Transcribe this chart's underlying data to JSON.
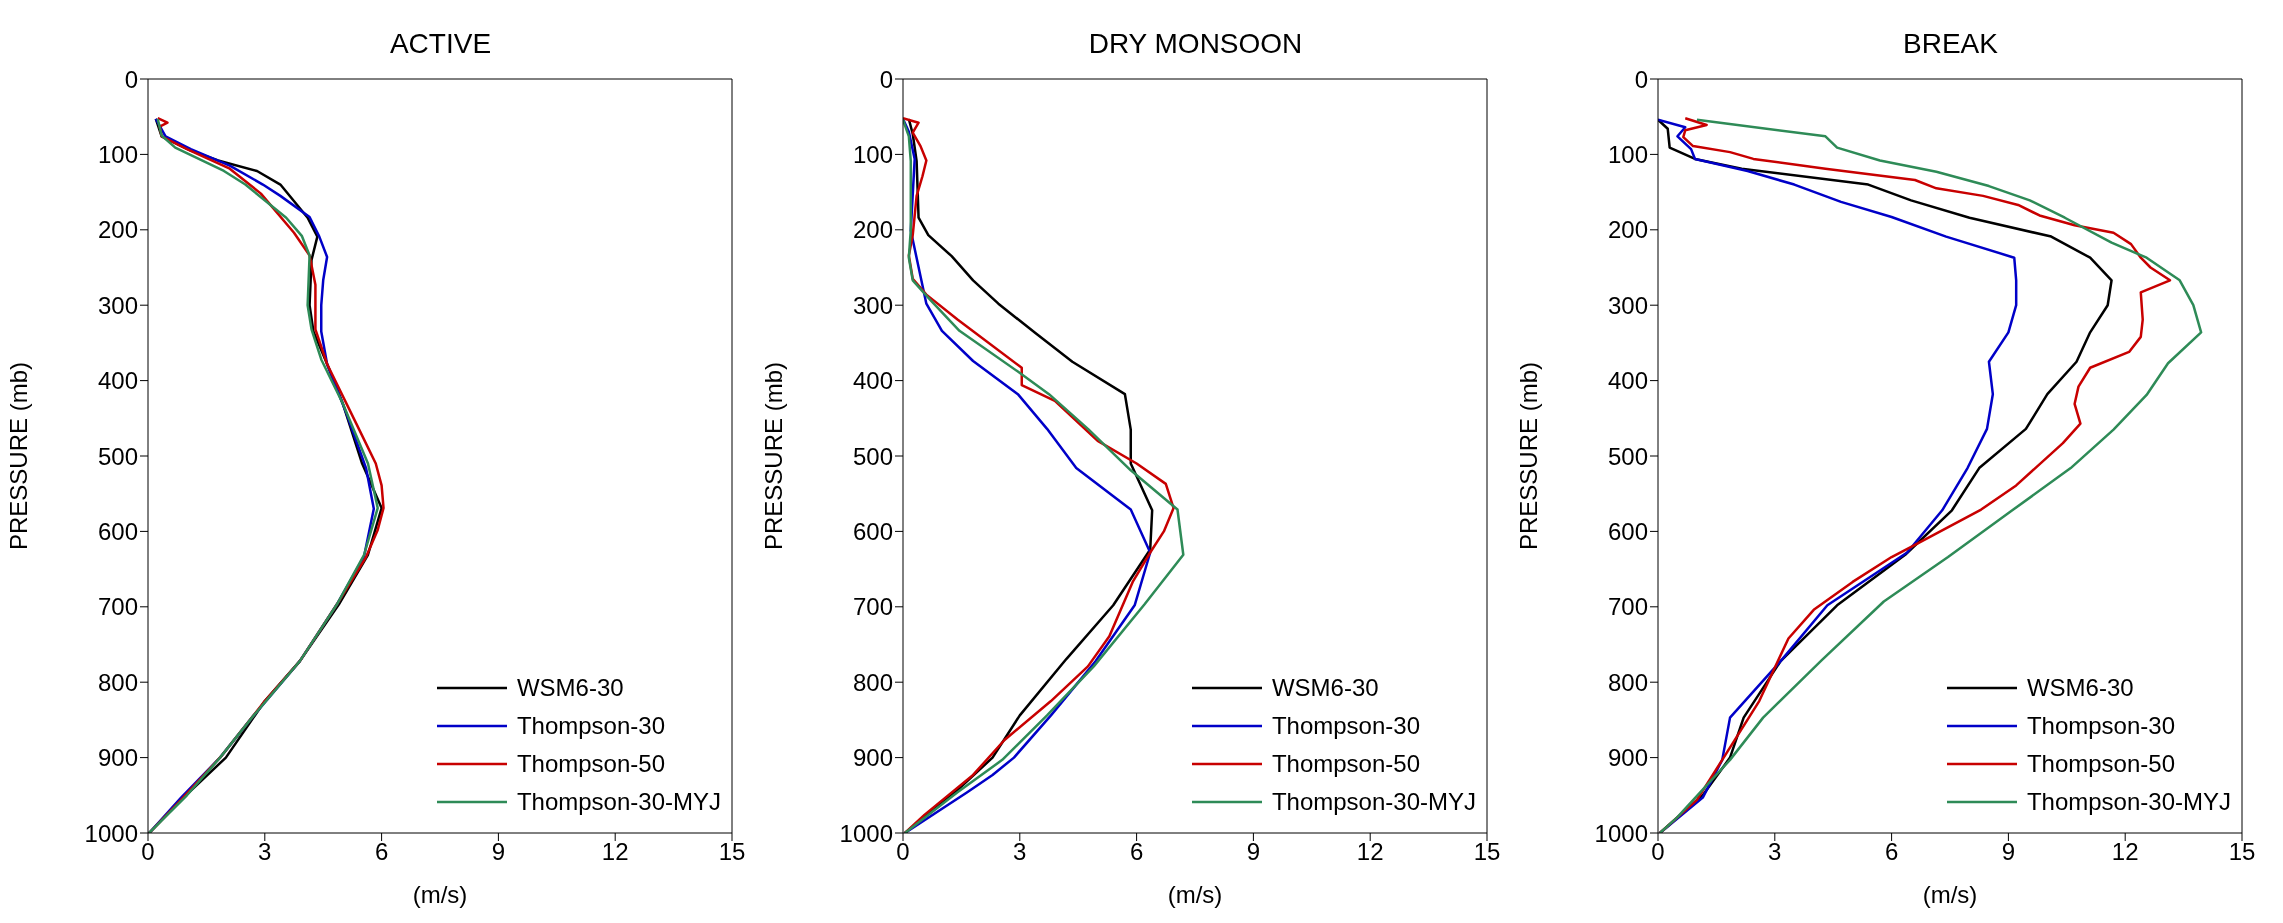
{
  "chart_data": [
    {
      "type": "line",
      "title": "ACTIVE",
      "xlabel": "(m/s)",
      "ylabel": "PRESSURE (mb)",
      "xlim": [
        0,
        15
      ],
      "xticks": [
        0,
        3,
        6,
        9,
        12,
        15
      ],
      "ylim": [
        1000,
        0
      ],
      "yticks": [
        0,
        100,
        200,
        300,
        400,
        500,
        600,
        700,
        800,
        900,
        1000
      ],
      "legend": "bottom right",
      "series": [
        {
          "name": "WSM6-30",
          "color": "#000000",
          "x": [
            0.2,
            0.35,
            1.1,
            1.8,
            2.8,
            3.4,
            4.1,
            4.35,
            4.2,
            4.15,
            4.25,
            4.6,
            5.0,
            5.5,
            6.0,
            5.65,
            4.9,
            3.9,
            3.0,
            2.0,
            0.85,
            0.03
          ],
          "values": [
            53,
            76,
            95,
            108,
            122,
            140,
            184,
            209,
            240,
            300,
            335,
            378,
            430,
            510,
            569,
            631,
            697,
            772,
            825,
            900,
            956,
            1000
          ]
        },
        {
          "name": "Thompson-30",
          "color": "#0000c8",
          "x": [
            0.2,
            0.45,
            1.1,
            2.1,
            2.95,
            3.4,
            4.15,
            4.4,
            4.6,
            4.5,
            4.45,
            4.45,
            4.6,
            5.1,
            5.6,
            5.8,
            5.55,
            4.85,
            3.9,
            2.7,
            1.85,
            0.85,
            0.03
          ],
          "values": [
            53,
            76,
            93,
            115,
            140,
            155,
            183,
            209,
            236,
            267,
            300,
            335,
            378,
            444,
            516,
            570,
            633,
            697,
            772,
            845,
            900,
            953,
            1000
          ]
        },
        {
          "name": "Thompson-50",
          "color": "#c80000",
          "x": [
            0.25,
            0.5,
            0.3,
            0.35,
            1.0,
            2.1,
            2.9,
            3.75,
            4.15,
            4.3,
            4.3,
            4.3,
            4.6,
            5.35,
            5.85,
            6.0,
            6.05,
            5.9,
            5.6,
            4.85,
            3.9,
            3.0,
            1.9,
            0.85,
            0.03
          ],
          "values": [
            52,
            58,
            63,
            76,
            93,
            119,
            152,
            204,
            234,
            273,
            300,
            332,
            378,
            457,
            510,
            539,
            569,
            598,
            634,
            697,
            772,
            825,
            897,
            956,
            1000
          ]
        },
        {
          "name": "Thompson-30-MYJ",
          "color": "#2e8b57",
          "x": [
            0.25,
            0.35,
            0.7,
            1.95,
            2.5,
            3.55,
            3.95,
            4.15,
            4.1,
            4.2,
            4.45,
            5.0,
            5.65,
            5.9,
            5.55,
            4.85,
            3.9,
            2.7,
            1.85,
            1.0,
            0.03
          ],
          "values": [
            53,
            75,
            91,
            122,
            140,
            184,
            208,
            234,
            300,
            332,
            372,
            430,
            510,
            569,
            631,
            697,
            772,
            845,
            900,
            950,
            1000
          ]
        }
      ]
    },
    {
      "type": "line",
      "title": "DRY MONSOON",
      "xlabel": "(m/s)",
      "ylabel": "PRESSURE (mb)",
      "xlim": [
        0,
        15
      ],
      "xticks": [
        0,
        3,
        6,
        9,
        12,
        15
      ],
      "ylim": [
        1000,
        0
      ],
      "yticks": [
        0,
        100,
        200,
        300,
        400,
        500,
        600,
        700,
        800,
        900,
        1000
      ],
      "legend": "bottom right",
      "series": [
        {
          "name": "WSM6-30",
          "color": "#000000",
          "x": [
            0.15,
            0.25,
            0.35,
            0.4,
            0.65,
            1.25,
            1.8,
            2.45,
            3.4,
            4.35,
            5.7,
            5.85,
            5.85,
            6.4,
            6.35,
            5.4,
            4.2,
            3.0,
            2.3,
            1.4,
            0.05
          ],
          "values": [
            53,
            73,
            109,
            184,
            207,
            235,
            267,
            298,
            337,
            375,
            418,
            465,
            510,
            572,
            624,
            698,
            769,
            844,
            900,
            943,
            1000
          ]
        },
        {
          "name": "Thompson-30",
          "color": "#0000c8",
          "x": [
            0,
            0.15,
            0.3,
            0.2,
            0.6,
            1.0,
            1.8,
            2.95,
            3.7,
            4.45,
            5.85,
            6.35,
            5.95,
            4.95,
            3.8,
            2.85,
            2.3,
            1.65,
            0.05
          ],
          "values": [
            53,
            70,
            106,
            201,
            298,
            334,
            374,
            418,
            464,
            516,
            571,
            628,
            698,
            772,
            844,
            900,
            923,
            946,
            1000
          ]
        },
        {
          "name": "Thompson-50",
          "color": "#c80000",
          "x": [
            0,
            0.4,
            0.25,
            0.45,
            0.6,
            0.5,
            0.35,
            0.25,
            0.15,
            0.25,
            0.6,
            1.4,
            3.05,
            3.05,
            3.9,
            5.0,
            6.0,
            6.75,
            6.95,
            6.7,
            6.35,
            5.9,
            5.3,
            4.75,
            3.8,
            2.6,
            1.8,
            0.55,
            0.05
          ],
          "values": [
            52,
            58,
            71,
            89,
            108,
            129,
            155,
            207,
            234,
            265,
            286,
            319,
            383,
            406,
            427,
            480,
            510,
            537,
            569,
            600,
            628,
            667,
            739,
            779,
            825,
            877,
            923,
            976,
            1000
          ]
        },
        {
          "name": "Thompson-30-MYJ",
          "color": "#2e8b57",
          "x": [
            0,
            0.15,
            0.2,
            0.2,
            0.15,
            0.25,
            0.7,
            1.45,
            2.95,
            3.75,
            4.75,
            5.85,
            7.05,
            7.2,
            6.2,
            4.9,
            3.7,
            2.55,
            1.4,
            0.05
          ],
          "values": [
            54,
            76,
            109,
            200,
            237,
            267,
            293,
            334,
            388,
            418,
            464,
            519,
            571,
            631,
            697,
            779,
            844,
            903,
            946,
            1000
          ]
        }
      ]
    },
    {
      "type": "line",
      "title": "BREAK",
      "xlabel": "(m/s)",
      "ylabel": "PRESSURE (mb)",
      "xlim": [
        0,
        15
      ],
      "xticks": [
        0,
        3,
        6,
        9,
        12,
        15
      ],
      "ylim": [
        1000,
        0
      ],
      "yticks": [
        0,
        100,
        200,
        300,
        400,
        500,
        600,
        700,
        800,
        900,
        1000
      ],
      "legend": "bottom right",
      "series": [
        {
          "name": "WSM6-30",
          "color": "#000000",
          "x": [
            0,
            0.25,
            0.3,
            0.95,
            2.15,
            5.4,
            6.5,
            8.0,
            10.1,
            11.1,
            11.65,
            11.55,
            11.1,
            10.75,
            10.0,
            9.45,
            8.25,
            7.55,
            6.35,
            4.6,
            3.15,
            2.2,
            1.85,
            1.15,
            0.05
          ],
          "values": [
            54,
            66,
            91,
            106,
            119,
            140,
            161,
            184,
            209,
            237,
            267,
            300,
            336,
            375,
            418,
            464,
            516,
            572,
            631,
            698,
            772,
            847,
            900,
            950,
            1000
          ]
        },
        {
          "name": "Thompson-30",
          "color": "#0000c8",
          "x": [
            0,
            0.7,
            0.5,
            0.85,
            0.95,
            2.3,
            3.5,
            4.7,
            6.0,
            7.4,
            9.15,
            9.2,
            9.2,
            9.0,
            8.5,
            8.6,
            8.45,
            7.95,
            7.3,
            6.4,
            4.35,
            3.15,
            1.85,
            1.65,
            1.15,
            0.05
          ],
          "values": [
            54,
            64,
            76,
            93,
            106,
            122,
            140,
            163,
            183,
            209,
            237,
            267,
            300,
            336,
            375,
            418,
            464,
            516,
            572,
            628,
            698,
            772,
            847,
            903,
            953,
            1000
          ]
        },
        {
          "name": "Thompson-50",
          "color": "#c80000",
          "x": [
            0.7,
            1.25,
            0.7,
            0.65,
            0.9,
            1.85,
            2.45,
            4.3,
            6.6,
            7.15,
            8.35,
            9.25,
            9.8,
            10.7,
            11.7,
            12.15,
            12.4,
            12.65,
            13.15,
            12.4,
            12.45,
            12.4,
            12.1,
            11.1,
            10.8,
            10.7,
            10.85,
            10.4,
            9.2,
            8.3,
            6.6,
            6.0,
            5.0,
            4.0,
            3.35,
            2.6,
            1.65,
            1.0,
            0.05
          ],
          "values": [
            52,
            61,
            68,
            77,
            89,
            97,
            106,
            119,
            134,
            145,
            155,
            167,
            181,
            194,
            204,
            219,
            237,
            250,
            267,
            283,
            319,
            342,
            362,
            383,
            408,
            431,
            457,
            483,
            539,
            571,
            618,
            634,
            667,
            704,
            742,
            825,
            903,
            956,
            1000
          ]
        },
        {
          "name": "Thompson-30-MYJ",
          "color": "#2e8b57",
          "x": [
            1.0,
            4.3,
            4.6,
            5.7,
            7.15,
            8.5,
            9.55,
            10.45,
            11.65,
            12.55,
            13.4,
            13.75,
            13.95,
            13.1,
            12.55,
            11.7,
            10.6,
            9.1,
            7.45,
            5.8,
            4.2,
            2.7,
            1.85,
            0.5,
            0.05
          ],
          "values": [
            54,
            76,
            91,
            108,
            123,
            142,
            161,
            184,
            217,
            237,
            267,
            300,
            336,
            377,
            419,
            465,
            516,
            572,
            634,
            693,
            771,
            847,
            903,
            979,
            1000
          ]
        }
      ]
    }
  ]
}
